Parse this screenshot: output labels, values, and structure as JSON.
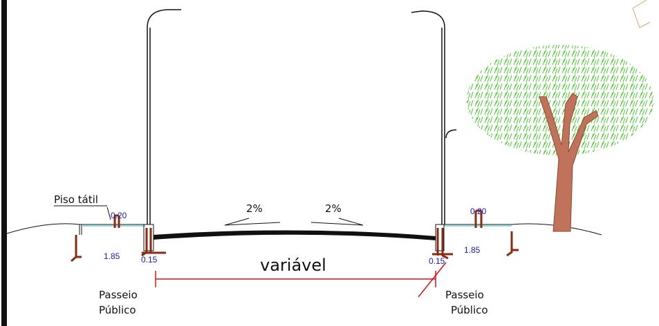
{
  "labels": {
    "piso_tatil": "Piso tátil",
    "slope_left": "2%",
    "slope_right": "2%",
    "road_width": "variável"
  },
  "dimensions": {
    "left": {
      "tactile": "0.20",
      "sidewalk": "1.85",
      "curb": "0.15"
    },
    "right": {
      "tactile": "0.20",
      "sidewalk": "1.85",
      "curb": "0.15"
    }
  },
  "sidewalks": {
    "left": [
      "Passeio",
      "Público"
    ],
    "right": [
      "Passeio",
      "Público"
    ]
  }
}
